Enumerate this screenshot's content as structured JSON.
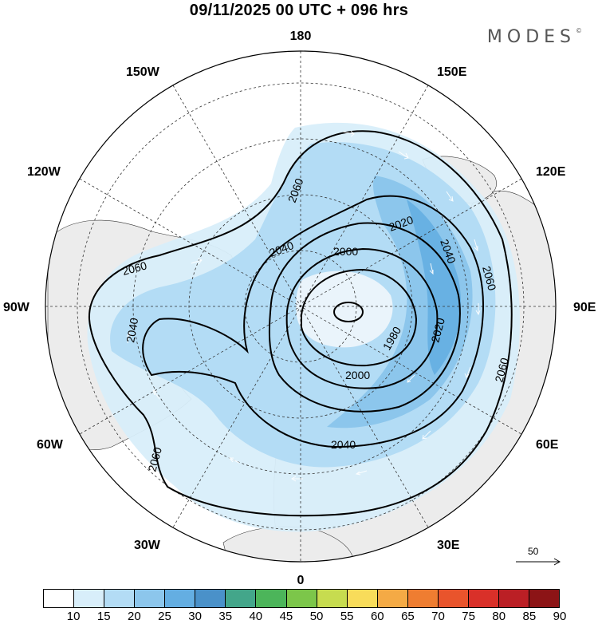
{
  "title": "09/11/2025  00 UTC  + 096 hrs",
  "brand": "MODES",
  "brand_mark": "©",
  "longitude_labels": {
    "top": "180",
    "bottom": "0",
    "left": "90W",
    "right": "90E",
    "upper_left_1": "150W",
    "upper_left_2": "120W",
    "upper_right_1": "150E",
    "upper_right_2": "120E",
    "lower_left_1": "60W",
    "lower_left_2": "30W",
    "lower_right_1": "60E",
    "lower_right_2": "30E"
  },
  "contour_labels": {
    "c1980": "1980",
    "c2000a": "2000",
    "c2000b": "2000",
    "c2020a": "2020",
    "c2020b": "2020",
    "c2040a": "2040",
    "c2040b": "2040",
    "c2040c": "2040",
    "c2040d": "2040",
    "c2060a": "2060",
    "c2060b": "2060",
    "c2060c": "2060",
    "c2060d": "2060",
    "c2060e": "2060"
  },
  "reference_vector": "50",
  "colorbar": {
    "ticks": [
      "10",
      "15",
      "20",
      "25",
      "30",
      "35",
      "40",
      "45",
      "50",
      "55",
      "60",
      "65",
      "70",
      "75",
      "80",
      "85",
      "90"
    ],
    "colors": [
      "#ffffff",
      "#d8eefa",
      "#b3dcf5",
      "#8cc6ec",
      "#64aee2",
      "#4a91c9",
      "#43a68a",
      "#4cb55a",
      "#7cc64a",
      "#c7dc4f",
      "#f8dc5a",
      "#f4aa45",
      "#ef7d31",
      "#e9542c",
      "#d93029",
      "#bb1f25",
      "#8c1416"
    ]
  }
}
